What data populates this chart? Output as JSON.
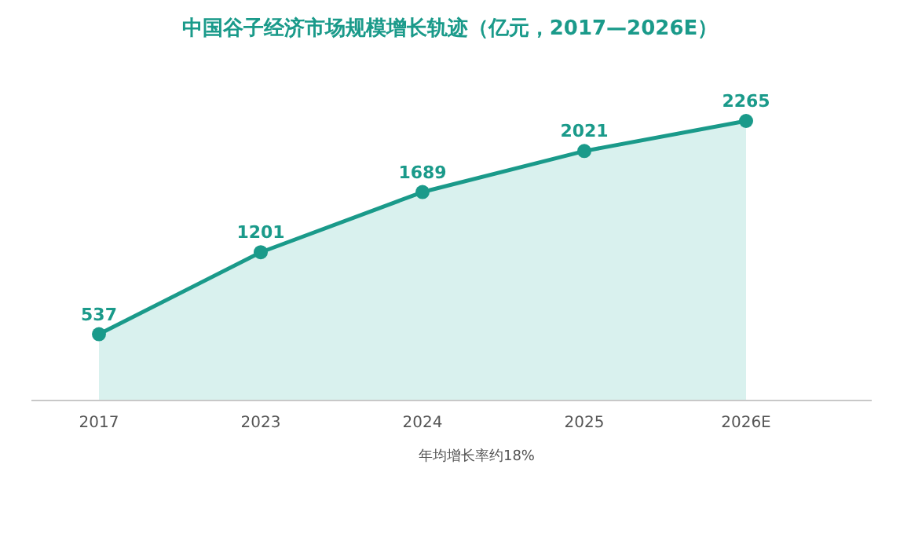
{
  "chart_data": {
    "type": "area",
    "title": "中国谷子经济市场规模增长轨迹（亿元，2017—2026E）",
    "categories": [
      "2017",
      "2023",
      "2024",
      "2025",
      "2026E"
    ],
    "series": [
      {
        "color": "#1a9a8a",
        "values": [
          537,
          1201,
          1689,
          2021,
          2265
        ]
      }
    ],
    "data_labels": true,
    "marker": "circle",
    "tick_labels": "x",
    "annotations": [
      "年均增长率约18%"
    ]
  }
}
